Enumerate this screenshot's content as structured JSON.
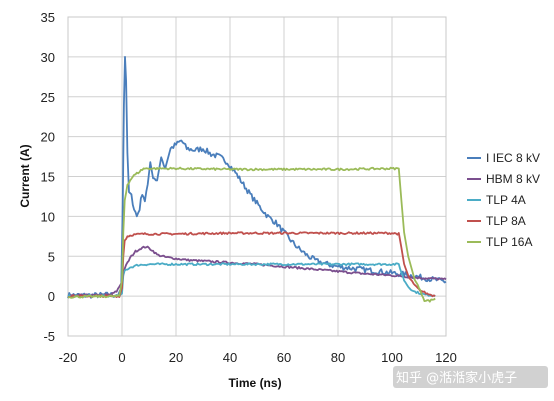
{
  "chart_data": {
    "type": "line",
    "title": "",
    "xlabel": "Time (ns)",
    "ylabel": "Current (A)",
    "xlim": [
      -20,
      120
    ],
    "ylim": [
      -5,
      35
    ],
    "x_ticks": [
      -20,
      0,
      20,
      40,
      60,
      80,
      100,
      120
    ],
    "y_ticks": [
      -5,
      0,
      5,
      10,
      15,
      20,
      25,
      30,
      35
    ],
    "grid": true,
    "legend_placement": "right",
    "series": [
      {
        "name": "I IEC 8 kV",
        "color": "#4a7ebb",
        "points": [
          [
            -20,
            0.1
          ],
          [
            -10,
            0.1
          ],
          [
            -1,
            0.2
          ],
          [
            -0.3,
            1
          ],
          [
            0.3,
            12
          ],
          [
            0.7,
            24
          ],
          [
            1.1,
            30
          ],
          [
            1.5,
            27
          ],
          [
            2,
            18
          ],
          [
            2.6,
            13
          ],
          [
            3.5,
            12.5
          ],
          [
            4.5,
            11
          ],
          [
            5.5,
            10
          ],
          [
            6.5,
            11
          ],
          [
            7.5,
            13
          ],
          [
            8.5,
            12
          ],
          [
            9.5,
            14
          ],
          [
            10.5,
            16.5
          ],
          [
            11.5,
            15
          ],
          [
            13,
            14.5
          ],
          [
            14.5,
            17.5
          ],
          [
            16,
            16
          ],
          [
            18,
            18.5
          ],
          [
            20,
            19
          ],
          [
            22,
            19.5
          ],
          [
            24,
            18.5
          ],
          [
            27,
            18.3
          ],
          [
            30,
            18.5
          ],
          [
            33,
            17.8
          ],
          [
            36,
            17.5
          ],
          [
            39,
            16.8
          ],
          [
            42,
            15.5
          ],
          [
            45,
            14
          ],
          [
            48,
            12.5
          ],
          [
            51,
            11.2
          ],
          [
            54,
            10
          ],
          [
            57,
            9.2
          ],
          [
            60,
            8
          ],
          [
            63,
            6.8
          ],
          [
            66,
            5.8
          ],
          [
            69,
            5
          ],
          [
            72,
            4.4
          ],
          [
            76,
            4
          ],
          [
            80,
            3.7
          ],
          [
            85,
            3.5
          ],
          [
            90,
            3.3
          ],
          [
            95,
            3.1
          ],
          [
            100,
            2.9
          ],
          [
            105,
            2.7
          ],
          [
            110,
            2.4
          ],
          [
            115,
            2.1
          ],
          [
            120,
            1.8
          ]
        ]
      },
      {
        "name": "HBM 8 kV",
        "color": "#7b4f8e",
        "points": [
          [
            -20,
            0.1
          ],
          [
            -8,
            0.1
          ],
          [
            -4,
            0.2
          ],
          [
            -2,
            0.6
          ],
          [
            0,
            1.8
          ],
          [
            1,
            3.5
          ],
          [
            3,
            4.8
          ],
          [
            5,
            5.6
          ],
          [
            7,
            6
          ],
          [
            9,
            6.2
          ],
          [
            11,
            5.8
          ],
          [
            13,
            5.2
          ],
          [
            16,
            4.9
          ],
          [
            20,
            4.7
          ],
          [
            25,
            4.5
          ],
          [
            30,
            4.4
          ],
          [
            35,
            4.3
          ],
          [
            40,
            4.2
          ],
          [
            50,
            4
          ],
          [
            60,
            3.7
          ],
          [
            70,
            3.4
          ],
          [
            80,
            3.1
          ],
          [
            90,
            2.8
          ],
          [
            100,
            2.6
          ],
          [
            105,
            2.45
          ],
          [
            110,
            2.3
          ],
          [
            115,
            2.2
          ],
          [
            120,
            2.1
          ]
        ]
      },
      {
        "name": "TLP 4A",
        "color": "#4bacc6",
        "points": [
          [
            -20,
            0
          ],
          [
            -1,
            0
          ],
          [
            0,
            0.3
          ],
          [
            0.5,
            2.5
          ],
          [
            1,
            3.2
          ],
          [
            3,
            3.6
          ],
          [
            6,
            3.9
          ],
          [
            10,
            4
          ],
          [
            20,
            4
          ],
          [
            40,
            4
          ],
          [
            60,
            4
          ],
          [
            80,
            4
          ],
          [
            100,
            4
          ],
          [
            102.5,
            4
          ],
          [
            103.5,
            3
          ],
          [
            104.5,
            2
          ],
          [
            106,
            1.2
          ],
          [
            108,
            0.6
          ],
          [
            112,
            0.2
          ],
          [
            116,
            0.05
          ]
        ]
      },
      {
        "name": "TLP 8A",
        "color": "#c0504d",
        "points": [
          [
            -20,
            0
          ],
          [
            -1,
            0
          ],
          [
            0,
            1
          ],
          [
            0.5,
            5
          ],
          [
            1,
            7
          ],
          [
            2,
            7.5
          ],
          [
            4,
            7.7
          ],
          [
            8,
            7.8
          ],
          [
            20,
            7.8
          ],
          [
            40,
            7.9
          ],
          [
            60,
            7.9
          ],
          [
            80,
            7.9
          ],
          [
            100,
            7.9
          ],
          [
            102.5,
            7.8
          ],
          [
            103.5,
            6
          ],
          [
            104.5,
            4
          ],
          [
            106,
            2.5
          ],
          [
            108,
            1.5
          ],
          [
            110,
            0.8
          ],
          [
            113,
            0.3
          ],
          [
            116,
            0
          ]
        ]
      },
      {
        "name": "TLP 16A",
        "color": "#9bbb59",
        "points": [
          [
            -20,
            -0.1
          ],
          [
            -1,
            0
          ],
          [
            0,
            2
          ],
          [
            0.5,
            8
          ],
          [
            1,
            12
          ],
          [
            2,
            14
          ],
          [
            4,
            15
          ],
          [
            6,
            15.5
          ],
          [
            8,
            16
          ],
          [
            12,
            16
          ],
          [
            20,
            16
          ],
          [
            40,
            15.9
          ],
          [
            60,
            15.9
          ],
          [
            80,
            15.9
          ],
          [
            100,
            16
          ],
          [
            102.5,
            16
          ],
          [
            103.5,
            12
          ],
          [
            104.5,
            8
          ],
          [
            106,
            5
          ],
          [
            108,
            2.5
          ],
          [
            110,
            1
          ],
          [
            112,
            -0.5
          ],
          [
            114,
            -0.6
          ],
          [
            116,
            -0.3
          ]
        ]
      }
    ]
  },
  "watermark": "知乎 @湉湉家小虎子"
}
